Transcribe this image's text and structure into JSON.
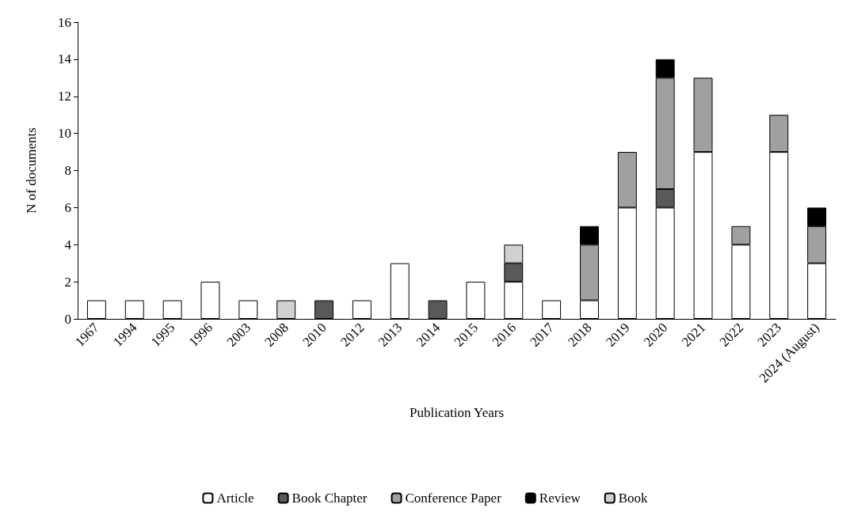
{
  "chart_data": {
    "type": "bar",
    "stacked": true,
    "xlabel": "Publication Years",
    "ylabel": "N of documents",
    "categories": [
      "1967",
      "1994",
      "1995",
      "1996",
      "2003",
      "2008",
      "2010",
      "2012",
      "2013",
      "2014",
      "2015",
      "2016",
      "2017",
      "2018",
      "2019",
      "2020",
      "2021",
      "2022",
      "2023",
      "2024 (August)"
    ],
    "series": [
      {
        "name": "Article",
        "color": "#ffffff",
        "values": [
          1,
          1,
          1,
          2,
          1,
          null,
          null,
          1,
          3,
          null,
          2,
          2,
          1,
          1,
          6,
          6,
          9,
          4,
          9,
          3
        ]
      },
      {
        "name": "Book Chapter",
        "color": "#595959",
        "values": [
          null,
          null,
          null,
          null,
          null,
          null,
          1,
          null,
          null,
          1,
          null,
          1,
          null,
          null,
          null,
          1,
          null,
          null,
          null,
          null
        ]
      },
      {
        "name": "Conference Paper",
        "color": "#a0a0a0",
        "values": [
          null,
          null,
          null,
          null,
          null,
          null,
          null,
          null,
          null,
          null,
          null,
          null,
          null,
          3,
          3,
          6,
          4,
          1,
          2,
          2
        ]
      },
      {
        "name": "Review",
        "color": "#000000",
        "values": [
          null,
          null,
          null,
          null,
          null,
          null,
          null,
          null,
          null,
          null,
          null,
          null,
          null,
          1,
          null,
          1,
          null,
          null,
          null,
          1
        ]
      },
      {
        "name": "Book",
        "color": "#d0d0d0",
        "values": [
          null,
          null,
          null,
          null,
          null,
          1,
          null,
          null,
          null,
          null,
          null,
          1,
          null,
          null,
          null,
          null,
          null,
          null,
          null,
          null
        ]
      }
    ],
    "ylim": [
      0,
      16
    ],
    "yticks": [
      0,
      2,
      4,
      6,
      8,
      10,
      12,
      14,
      16
    ],
    "grid": false,
    "legend": "bottom"
  }
}
